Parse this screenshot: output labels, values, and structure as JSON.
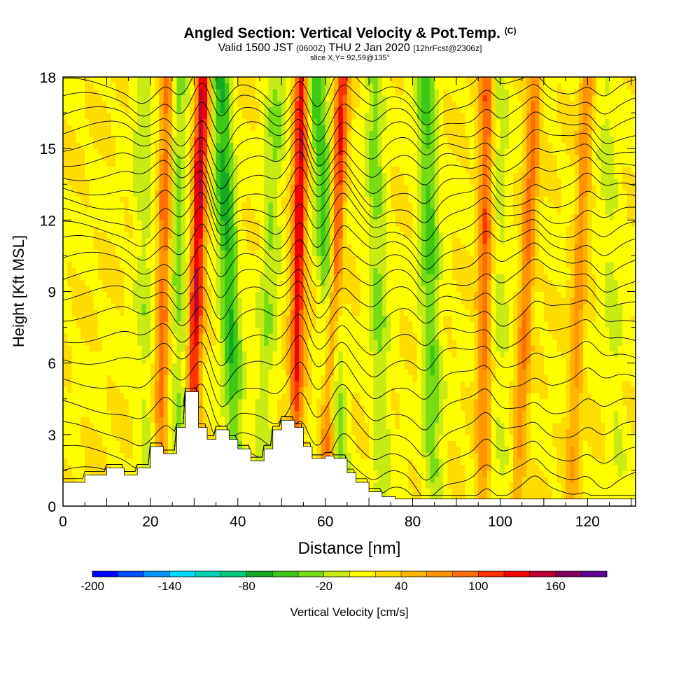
{
  "header": {
    "title": "Angled Section: Vertical Velocity & Pot.Temp.",
    "copyright": "(C)",
    "valid_a": "Valid 1500 JST",
    "valid_z": "(0600Z)",
    "valid_b": "THU 2 Jan 2020",
    "forecast": "[12hrFcst@2306z]",
    "slice": "slice X,Y= 92,59@135°"
  },
  "chart_data": {
    "type": "heatmap",
    "xlabel": "Distance [nm]",
    "ylabel": "Height [Kft MSL]",
    "xlim": [
      0,
      131
    ],
    "ylim": [
      0,
      18
    ],
    "xticks": [
      0,
      20,
      40,
      60,
      80,
      100,
      120
    ],
    "yticks": [
      0,
      3,
      6,
      9,
      12,
      15,
      18
    ],
    "terrain_kft": [
      [
        0,
        1.0
      ],
      [
        5,
        1.3
      ],
      [
        10,
        1.6
      ],
      [
        14,
        1.3
      ],
      [
        17,
        1.6
      ],
      [
        20,
        2.5
      ],
      [
        23,
        2.2
      ],
      [
        26,
        3.3
      ],
      [
        28,
        4.8
      ],
      [
        30,
        4.8
      ],
      [
        31,
        3.3
      ],
      [
        33,
        2.8
      ],
      [
        35,
        3.2
      ],
      [
        38,
        2.8
      ],
      [
        40,
        2.4
      ],
      [
        43,
        1.9
      ],
      [
        46,
        2.4
      ],
      [
        48,
        3.2
      ],
      [
        50,
        3.6
      ],
      [
        53,
        3.3
      ],
      [
        55,
        2.5
      ],
      [
        57,
        2.0
      ],
      [
        60,
        2.1
      ],
      [
        62,
        2.0
      ],
      [
        65,
        1.4
      ],
      [
        67,
        1.0
      ],
      [
        70,
        0.6
      ],
      [
        73,
        0.4
      ],
      [
        76,
        0.3
      ],
      [
        131,
        0.3
      ]
    ],
    "updraft_bands": [
      {
        "name_x": 32,
        "bottom_x": 29,
        "top_x": 32,
        "peak": 130
      },
      {
        "name_x": 54,
        "bottom_x": 53,
        "top_x": 54.5,
        "peak": 120
      },
      {
        "name_x": 64,
        "bottom_x": 60,
        "top_x": 64,
        "peak": 100
      },
      {
        "name_x": 23,
        "bottom_x": 22,
        "top_x": 24,
        "peak": 80
      },
      {
        "name_x": 97,
        "bottom_x": 96,
        "top_x": 97,
        "peak": 80
      },
      {
        "name_x": 108,
        "bottom_x": 104,
        "top_x": 108,
        "peak": 70
      },
      {
        "name_x": 118,
        "bottom_x": 116,
        "top_x": 120,
        "peak": 55
      }
    ],
    "downdraft_bands": [
      {
        "bottom_x": 40,
        "top_x": 36,
        "peak": -85
      },
      {
        "bottom_x": 64,
        "top_x": 58,
        "peak": -70
      },
      {
        "bottom_x": 85,
        "top_x": 83,
        "peak": -65
      },
      {
        "bottom_x": 27,
        "top_x": 26,
        "peak": -45
      },
      {
        "bottom_x": 73,
        "top_x": 71,
        "peak": -45
      },
      {
        "bottom_x": 45,
        "top_x": 49,
        "peak": -40
      },
      {
        "bottom_x": 19,
        "top_x": 18,
        "peak": -30
      },
      {
        "bottom_x": 100,
        "top_x": 100,
        "peak": -25
      },
      {
        "bottom_x": 127,
        "top_x": 124,
        "peak": -25
      }
    ],
    "isentrope_heights_kft": [
      0.5,
      1.3,
      2.2,
      3.2,
      4.2,
      5.3,
      6.3,
      7.2,
      8.1,
      8.9,
      9.6,
      10.3,
      11.0,
      11.6,
      12.2,
      12.8,
      13.4,
      14.0,
      14.6,
      15.2,
      15.8,
      16.4,
      17.0,
      17.6
    ],
    "colorbar": {
      "label": "Vertical Velocity [cm/s]",
      "tick_labels": [
        "-200",
        "-140",
        "-80",
        "-20",
        "40",
        "100",
        "160"
      ],
      "tick_values": [
        -200,
        -140,
        -80,
        -20,
        40,
        100,
        160
      ],
      "levels": [
        -200,
        -180,
        -160,
        -140,
        -120,
        -100,
        -80,
        -60,
        -40,
        -20,
        0,
        20,
        40,
        60,
        80,
        100,
        120,
        140,
        160,
        180,
        200
      ],
      "colors": [
        "#0000ff",
        "#0050ff",
        "#0096ff",
        "#00dcff",
        "#00d2b4",
        "#00c878",
        "#14aa28",
        "#3cc814",
        "#78dc14",
        "#c8eb14",
        "#ffff00",
        "#ffdc00",
        "#ffb400",
        "#ff9600",
        "#ff6e00",
        "#ff3200",
        "#f00000",
        "#be0032",
        "#82005a",
        "#640096"
      ]
    }
  }
}
